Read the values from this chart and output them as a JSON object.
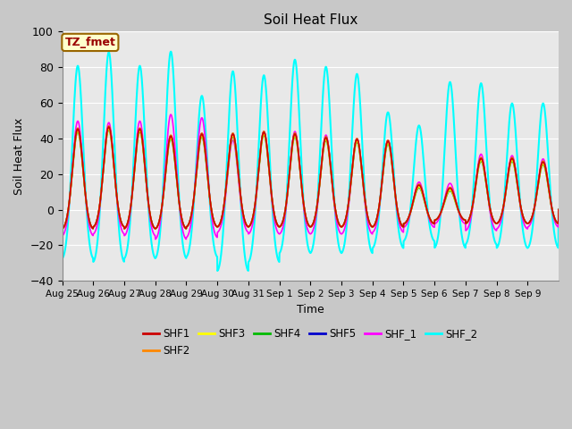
{
  "title": "Soil Heat Flux",
  "xlabel": "Time",
  "ylabel": "Soil Heat Flux",
  "ylim": [
    -40,
    100
  ],
  "series": {
    "SHF1": {
      "color": "#cc0000",
      "lw": 1.2
    },
    "SHF2": {
      "color": "#ff8800",
      "lw": 1.2
    },
    "SHF3": {
      "color": "#ffff00",
      "lw": 1.2
    },
    "SHF4": {
      "color": "#00bb00",
      "lw": 1.2
    },
    "SHF5": {
      "color": "#0000cc",
      "lw": 1.2
    },
    "SHF_1": {
      "color": "#ff00ff",
      "lw": 1.2
    },
    "SHF_2": {
      "color": "#00ffff",
      "lw": 1.5
    }
  },
  "legend_order": [
    "SHF1",
    "SHF2",
    "SHF3",
    "SHF4",
    "SHF5",
    "SHF_1",
    "SHF_2"
  ],
  "tz_label": "TZ_fmet",
  "tz_bg": "#ffffcc",
  "tz_border": "#996600",
  "tz_text_color": "#990000",
  "fig_bg": "#c8c8c8",
  "plot_bg": "#e8e8e8",
  "grid_color": "#ffffff",
  "yticks": [
    -40,
    -20,
    0,
    20,
    40,
    60,
    80,
    100
  ],
  "xtick_labels": [
    "Aug 25",
    "Aug 26",
    "Aug 27",
    "Aug 28",
    "Aug 29",
    "Aug 30",
    "Aug 31",
    "Sep 1",
    "Sep 2",
    "Sep 3",
    "Sep 4",
    "Sep 5",
    "Sep 6",
    "Sep 7",
    "Sep 8",
    "Sep 9"
  ]
}
